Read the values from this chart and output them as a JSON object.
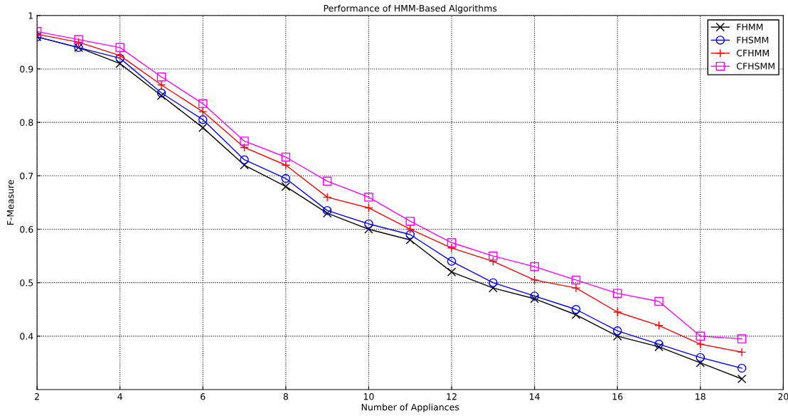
{
  "chart_data": {
    "type": "line",
    "title": "Performance of HMM-Based Algorithms",
    "xlabel": "Number of Appliances",
    "ylabel": "F-Measure",
    "x": [
      2,
      3,
      4,
      5,
      6,
      7,
      8,
      9,
      10,
      11,
      12,
      13,
      14,
      15,
      16,
      17,
      18,
      19
    ],
    "series": [
      {
        "name": "FHMM",
        "color": "#000000",
        "marker": "cross",
        "values": [
          0.96,
          0.94,
          0.91,
          0.85,
          0.79,
          0.72,
          0.68,
          0.63,
          0.6,
          0.58,
          0.52,
          0.49,
          0.47,
          0.44,
          0.4,
          0.38,
          0.35,
          0.32
        ]
      },
      {
        "name": "FHSMM",
        "color": "#0000ff",
        "marker": "circle",
        "values": [
          0.96,
          0.94,
          0.92,
          0.855,
          0.805,
          0.73,
          0.695,
          0.635,
          0.61,
          0.59,
          0.54,
          0.5,
          0.475,
          0.45,
          0.41,
          0.385,
          0.36,
          0.34
        ]
      },
      {
        "name": "CFHMM",
        "color": "#ff0000",
        "marker": "plus",
        "values": [
          0.965,
          0.95,
          0.925,
          0.87,
          0.82,
          0.753,
          0.72,
          0.66,
          0.64,
          0.6,
          0.565,
          0.54,
          0.505,
          0.49,
          0.445,
          0.42,
          0.385,
          0.37
        ]
      },
      {
        "name": "CFHSMM",
        "color": "#ff00ff",
        "marker": "square",
        "values": [
          0.97,
          0.955,
          0.94,
          0.885,
          0.835,
          0.765,
          0.735,
          0.69,
          0.66,
          0.615,
          0.575,
          0.55,
          0.53,
          0.505,
          0.48,
          0.465,
          0.4,
          0.395
        ]
      }
    ],
    "xlim": [
      2,
      20
    ],
    "xticks": [
      2,
      4,
      6,
      8,
      10,
      12,
      14,
      16,
      18,
      20
    ],
    "ylim": [
      0.3,
      1
    ],
    "yticks": [
      0.4,
      0.5,
      0.6,
      0.7,
      0.8,
      0.9,
      1
    ],
    "grid": true,
    "legend": "top right",
    "line_style": "solid"
  }
}
